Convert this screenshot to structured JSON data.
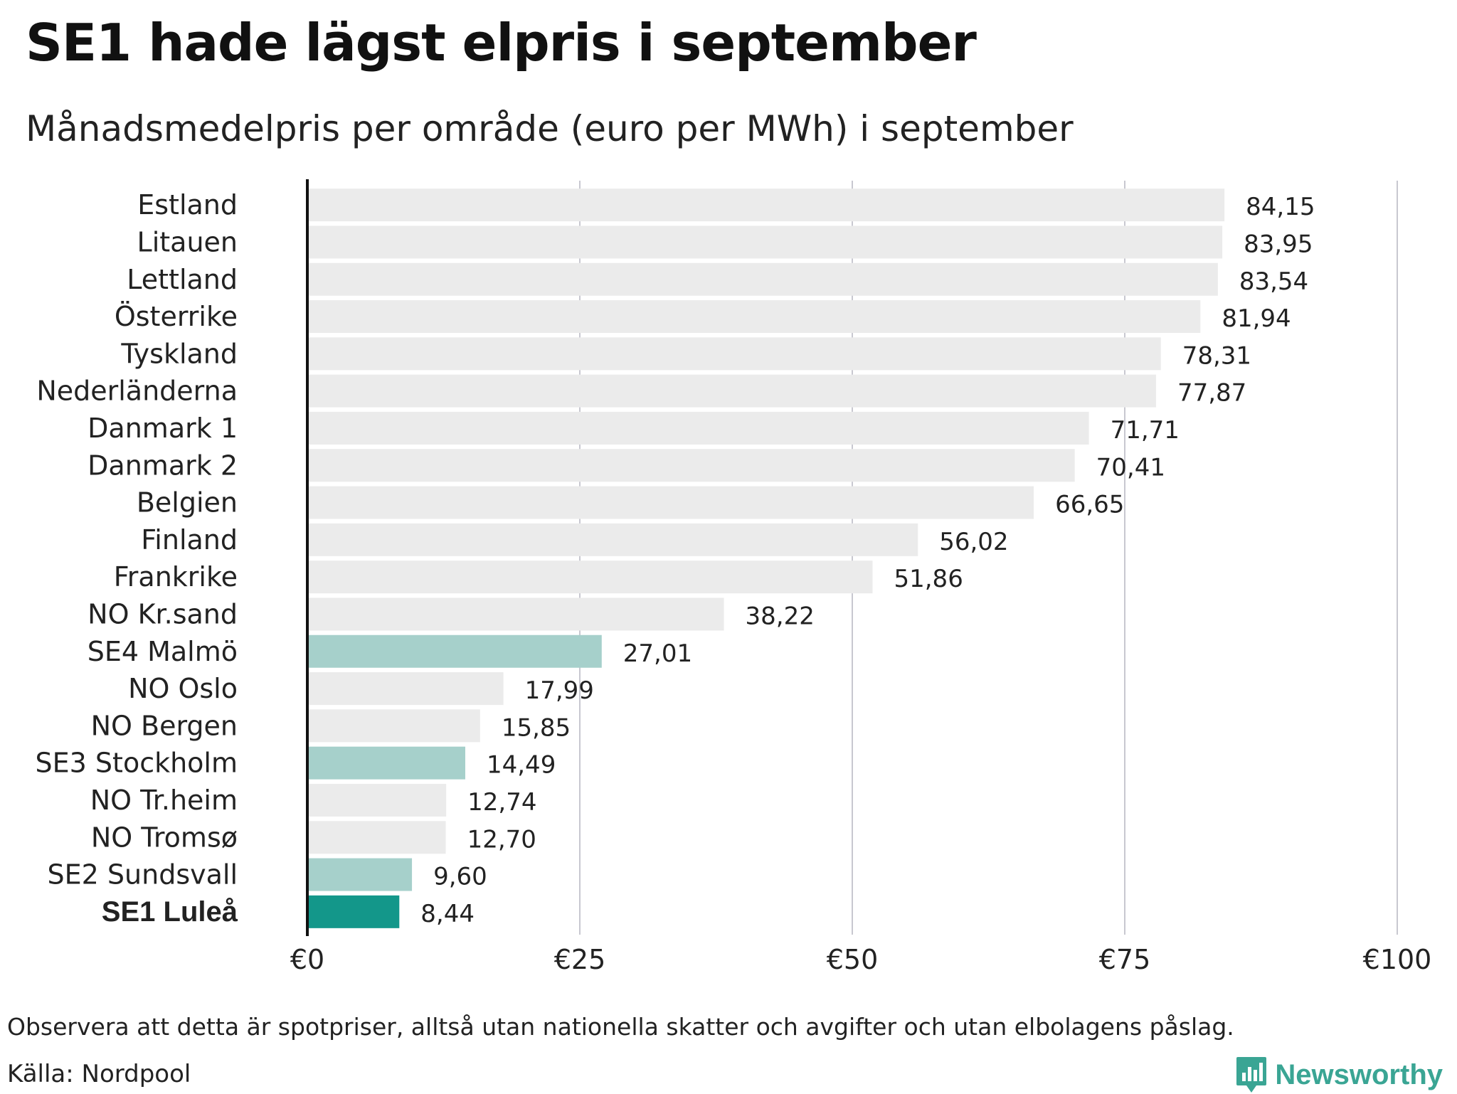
{
  "header": {
    "title": "SE1 hade lägst elpris i september",
    "subtitle": "Månadsmedelpris per område (euro per MWh) i september"
  },
  "footer": {
    "note": "Observera att detta är spotpriser, alltså utan nationella skatter och avgifter och utan elbolagens påslag.",
    "source": "Källa: Nordpool",
    "brand": "Newsworthy",
    "brand_icon": "newsworthy-logo-icon"
  },
  "colors": {
    "default_bar": "#ebebeb",
    "swedish_bar": "#a6d0cb",
    "highlight_bar": "#13978a",
    "grid": "#c8c8d0",
    "axis": "#111111"
  },
  "chart_data": {
    "type": "bar",
    "orientation": "horizontal",
    "title": "SE1 hade lägst elpris i september",
    "subtitle": "Månadsmedelpris per område (euro per MWh) i september",
    "xlabel": "",
    "ylabel": "",
    "xlim": [
      0,
      100
    ],
    "ticks": [
      0,
      25,
      50,
      75,
      100
    ],
    "tick_labels": [
      "€0",
      "€25",
      "€50",
      "€75",
      "€100"
    ],
    "grid": true,
    "legend": "none",
    "categories": [
      "Estland",
      "Litauen",
      "Lettland",
      "Österrike",
      "Tyskland",
      "Nederländerna",
      "Danmark 1",
      "Danmark 2",
      "Belgien",
      "Finland",
      "Frankrike",
      "NO Kr.sand",
      "SE4 Malmö",
      "NO Oslo",
      "NO Bergen",
      "SE3 Stockholm",
      "NO Tr.heim",
      "NO Tromsø",
      "SE2 Sundsvall",
      "SE1 Luleå"
    ],
    "values": [
      84.15,
      83.95,
      83.54,
      81.94,
      78.31,
      77.87,
      71.71,
      70.41,
      66.65,
      56.02,
      51.86,
      38.22,
      27.01,
      17.99,
      15.85,
      14.49,
      12.74,
      12.7,
      9.6,
      8.44
    ],
    "value_labels": [
      "84,15",
      "83,95",
      "83,54",
      "81,94",
      "78,31",
      "77,87",
      "71,71",
      "70,41",
      "66,65",
      "56,02",
      "51,86",
      "38,22",
      "27,01",
      "17,99",
      "15,85",
      "14,49",
      "12,74",
      "12,70",
      "9,60",
      "8,44"
    ],
    "bar_style": [
      "default",
      "default",
      "default",
      "default",
      "default",
      "default",
      "default",
      "default",
      "default",
      "default",
      "default",
      "default",
      "swedish",
      "default",
      "default",
      "swedish",
      "default",
      "default",
      "swedish",
      "highlight"
    ]
  }
}
